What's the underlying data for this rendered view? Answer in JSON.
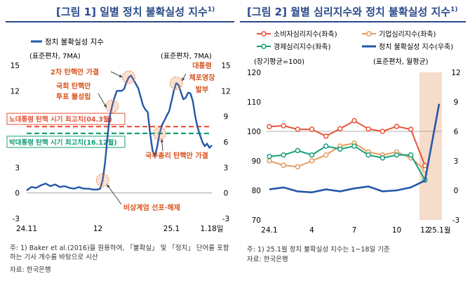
{
  "chart1": {
    "title": "[그림 1] 일별 정치 불확실성 지수",
    "title_sup": "1)",
    "legend": "정치 불확실성 지수",
    "left_axis_label": "(표준편차, 7MA)",
    "right_axis_label": "(표준편차, 7MA)",
    "x_ticks": [
      "24.11",
      "12",
      "25.1",
      "1.18일"
    ],
    "y_ticks": [
      15,
      12,
      9,
      6,
      3,
      0,
      -3
    ],
    "ref_lines": [
      {
        "label": "노대통령 탄핵 시기 최고치(04.3월)",
        "value": 7.8,
        "color": "#e8523a"
      },
      {
        "label": "박대통령 탄핵 시기 최고치(16.12월)",
        "value": 7.0,
        "color": "#17a07a"
      }
    ],
    "annotations": [
      {
        "text": "2차 탄핵안 가결"
      },
      {
        "text": "국회 탄핵안\n투표 불성립"
      },
      {
        "text": "대통령\n체포영장\n발부"
      },
      {
        "text": "국무총리 탄핵안 가결"
      },
      {
        "text": "비상계엄 선포·해제"
      }
    ],
    "note": "주: 1) Baker et al.(2016)을 원용하여, 「불확실」 및 「정치」 단어를 포함하는 기사 개수를 바탕으로 시산",
    "source": "자료: 한국은행"
  },
  "chart2": {
    "title": "[그림 2] 월별 심리지수와 정치 불확실성 지수",
    "title_sup": "1)",
    "legend": [
      "소비자심리지수(좌축)",
      "기업심리지수(좌축)",
      "경제심리지수(좌축)",
      "정치 불확실성 지수(우축)"
    ],
    "left_axis_label": "(장기평균=100)",
    "right_axis_label": "(표준편차, 월평균)",
    "x_ticks": [
      "24.1",
      "4",
      "7",
      "10",
      "12",
      "25.1월"
    ],
    "left_ticks": [
      120,
      110,
      100,
      90,
      80,
      70
    ],
    "right_ticks": [
      12,
      9,
      6,
      3,
      0,
      -3
    ],
    "note": "주: 1) 25.1월 정치 불확실성 지수는 1~18일 기준",
    "source": "자료: 한국은행"
  },
  "chart_data": [
    {
      "type": "line",
      "title": "[그림 1] 일별 정치 불확실성 지수",
      "ylabel": "(표준편차, 7MA)",
      "ylim": [
        -3,
        15
      ],
      "x_range": [
        "2024-11-01",
        "2025-01-18"
      ],
      "series": [
        {
          "name": "정치 불확실성 지수",
          "x": [
            "2024-11-01",
            "2024-11-03",
            "2024-11-05",
            "2024-11-07",
            "2024-11-09",
            "2024-11-11",
            "2024-11-13",
            "2024-11-15",
            "2024-11-17",
            "2024-11-19",
            "2024-11-21",
            "2024-11-23",
            "2024-11-25",
            "2024-11-27",
            "2024-11-29",
            "2024-12-01",
            "2024-12-02",
            "2024-12-03",
            "2024-12-04",
            "2024-12-05",
            "2024-12-06",
            "2024-12-07",
            "2024-12-08",
            "2024-12-09",
            "2024-12-10",
            "2024-12-11",
            "2024-12-12",
            "2024-12-13",
            "2024-12-14",
            "2024-12-15",
            "2024-12-16",
            "2024-12-17",
            "2024-12-18",
            "2024-12-19",
            "2024-12-20",
            "2024-12-21",
            "2024-12-22",
            "2024-12-23",
            "2024-12-24",
            "2024-12-25",
            "2024-12-26",
            "2024-12-27",
            "2024-12-28",
            "2024-12-29",
            "2024-12-30",
            "2024-12-31",
            "2025-01-01",
            "2025-01-02",
            "2025-01-03",
            "2025-01-04",
            "2025-01-05",
            "2025-01-06",
            "2025-01-07",
            "2025-01-08",
            "2025-01-09",
            "2025-01-10",
            "2025-01-11",
            "2025-01-12",
            "2025-01-13",
            "2025-01-14",
            "2025-01-15",
            "2025-01-16",
            "2025-01-17",
            "2025-01-18"
          ],
          "y": [
            0.3,
            0.7,
            0.6,
            0.9,
            1.1,
            0.8,
            1.0,
            0.7,
            0.8,
            0.6,
            0.5,
            0.7,
            0.5,
            0.5,
            0.4,
            0.4,
            0.5,
            1.5,
            3.5,
            6.5,
            9.0,
            10.2,
            11.2,
            12.0,
            12.0,
            12.0,
            12.2,
            13.0,
            13.6,
            13.8,
            13.3,
            12.8,
            12.3,
            11.3,
            10.3,
            9.8,
            9.5,
            7.0,
            5.0,
            4.3,
            5.5,
            7.0,
            8.0,
            8.5,
            9.1,
            9.6,
            10.8,
            12.0,
            12.9,
            12.7,
            11.8,
            11.0,
            11.2,
            11.8,
            11.7,
            10.8,
            9.0,
            7.7,
            6.8,
            6.0,
            5.5,
            5.8,
            5.3,
            5.6
          ]
        }
      ]
    },
    {
      "type": "line",
      "title": "[그림 2] 월별 심리지수와 정치 불확실성 지수",
      "categories": [
        "24.1",
        "2",
        "3",
        "4",
        "5",
        "6",
        "7",
        "8",
        "9",
        "10",
        "11",
        "12",
        "25.1월"
      ],
      "ylim": [
        70,
        120
      ],
      "y2lim": [
        -3,
        12
      ],
      "series": [
        {
          "name": "소비자심리지수(좌축)",
          "color": "#e8523a",
          "axis": "left",
          "values": [
            101.6,
            101.9,
            100.7,
            100.7,
            98.4,
            100.9,
            103.6,
            100.8,
            100.0,
            101.7,
            100.7,
            88.4,
            null
          ]
        },
        {
          "name": "기업심리지수(좌축)",
          "color": "#e59b5f",
          "axis": "left",
          "values": [
            90.0,
            88.5,
            88.0,
            90.0,
            92.0,
            95.0,
            96.0,
            93.0,
            92.0,
            93.0,
            91.0,
            87.0,
            null
          ]
        },
        {
          "name": "경제심리지수(좌축)",
          "color": "#17a07a",
          "axis": "left",
          "values": [
            91.5,
            92.0,
            93.5,
            92.0,
            95.0,
            94.0,
            95.0,
            92.0,
            91.0,
            92.0,
            92.0,
            83.5,
            null
          ]
        },
        {
          "name": "정치 불확실성 지수(우축)",
          "color": "#2557a8",
          "axis": "right",
          "values": [
            0.1,
            0.3,
            -0.1,
            -0.2,
            0.1,
            -0.1,
            0.2,
            0.4,
            -0.1,
            0.0,
            0.3,
            1.0,
            8.8
          ]
        }
      ]
    }
  ]
}
